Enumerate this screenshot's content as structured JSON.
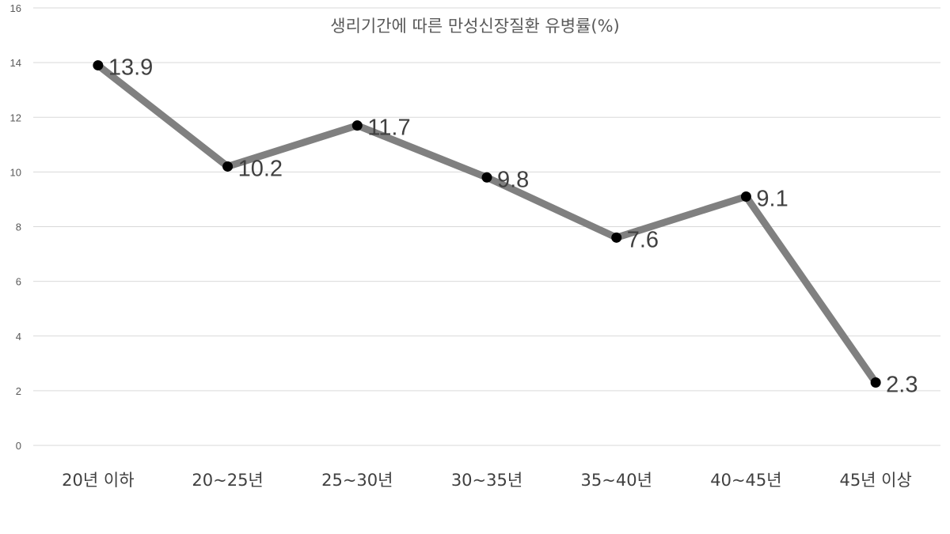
{
  "chart_data": {
    "type": "line",
    "title": "생리기간에 따른 만성신장질환 유병률(%)",
    "xlabel": "",
    "ylabel": "",
    "categories": [
      "20년 이하",
      "20~25년",
      "25~30년",
      "30~35년",
      "35~40년",
      "40~45년",
      "45년 이상"
    ],
    "series": [
      {
        "values": [
          13.9,
          10.2,
          11.7,
          9.8,
          7.6,
          9.1,
          2.3
        ]
      }
    ],
    "data_labels": [
      "13.9",
      "10.2",
      "11.7",
      "9.8",
      "7.6",
      "9.1",
      "2.3"
    ],
    "ylim": [
      0,
      16
    ],
    "yticks": [
      0,
      2,
      4,
      6,
      8,
      10,
      12,
      14,
      16
    ],
    "ytick_labels": [
      "0",
      "2",
      "4",
      "6",
      "8",
      "10",
      "12",
      "14",
      "16"
    ],
    "grid": true,
    "legend": "none",
    "colors": {
      "line": "#808080",
      "marker": "#000000",
      "grid": "#d9d9d9"
    }
  }
}
